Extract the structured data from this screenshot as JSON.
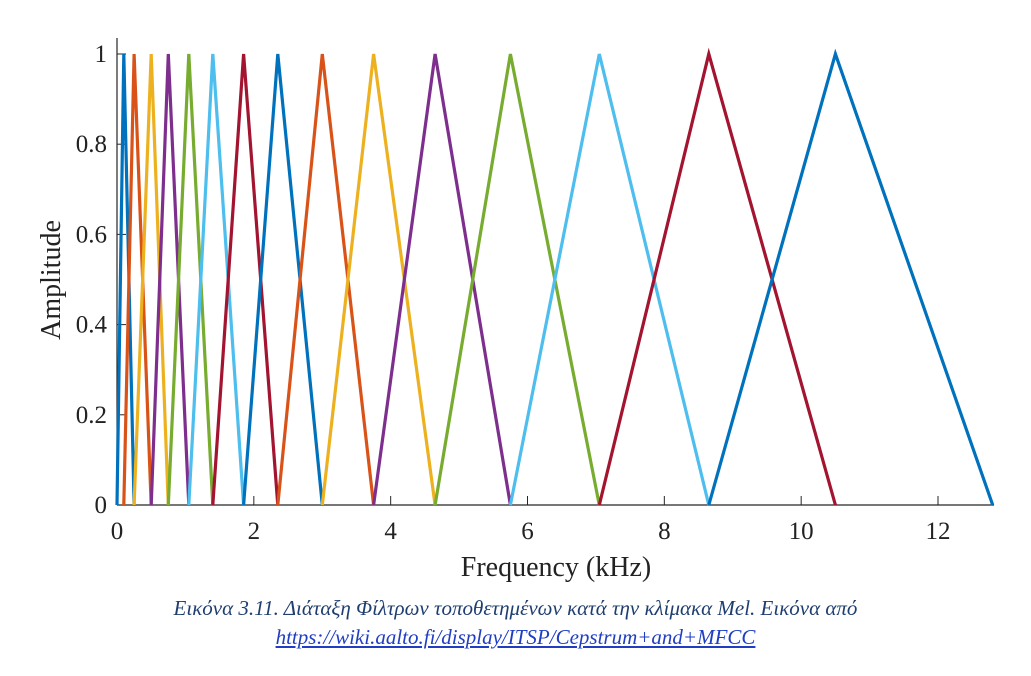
{
  "chart_data": {
    "type": "line",
    "xlabel": "Frequency (kHz)",
    "ylabel": "Amplitude",
    "xlim": [
      0,
      12.8
    ],
    "ylim": [
      0,
      1
    ],
    "xticks": [
      0,
      2,
      4,
      6,
      8,
      10,
      12
    ],
    "yticks": [
      0,
      0.2,
      0.4,
      0.6,
      0.8,
      1
    ],
    "grid": false,
    "legend": "none",
    "series": [
      {
        "color": "#0072BD",
        "x": [
          0,
          0.1,
          0.25
        ],
        "y": [
          0,
          1,
          0
        ]
      },
      {
        "color": "#D95319",
        "x": [
          0.1,
          0.25,
          0.5
        ],
        "y": [
          0,
          1,
          0
        ]
      },
      {
        "color": "#EDB120",
        "x": [
          0.25,
          0.5,
          0.75
        ],
        "y": [
          0,
          1,
          0
        ]
      },
      {
        "color": "#7E2F8E",
        "x": [
          0.5,
          0.75,
          1.05
        ],
        "y": [
          0,
          1,
          0
        ]
      },
      {
        "color": "#77AC30",
        "x": [
          0.75,
          1.05,
          1.4
        ],
        "y": [
          0,
          1,
          0
        ]
      },
      {
        "color": "#4DBEEE",
        "x": [
          1.05,
          1.4,
          1.85
        ],
        "y": [
          0,
          1,
          0
        ]
      },
      {
        "color": "#A2142F",
        "x": [
          1.4,
          1.85,
          2.35
        ],
        "y": [
          0,
          1,
          0
        ]
      },
      {
        "color": "#0072BD",
        "x": [
          1.85,
          2.35,
          3.0
        ],
        "y": [
          0,
          1,
          0
        ]
      },
      {
        "color": "#D95319",
        "x": [
          2.35,
          3.0,
          3.75
        ],
        "y": [
          0,
          1,
          0
        ]
      },
      {
        "color": "#EDB120",
        "x": [
          3.0,
          3.75,
          4.65
        ],
        "y": [
          0,
          1,
          0
        ]
      },
      {
        "color": "#7E2F8E",
        "x": [
          3.75,
          4.65,
          5.75
        ],
        "y": [
          0,
          1,
          0
        ]
      },
      {
        "color": "#77AC30",
        "x": [
          4.65,
          5.75,
          7.05
        ],
        "y": [
          0,
          1,
          0
        ]
      },
      {
        "color": "#4DBEEE",
        "x": [
          5.75,
          7.05,
          8.65
        ],
        "y": [
          0,
          1,
          0
        ]
      },
      {
        "color": "#A2142F",
        "x": [
          7.05,
          8.65,
          10.5
        ],
        "y": [
          0,
          1,
          0
        ]
      },
      {
        "color": "#0072BD",
        "x": [
          8.65,
          10.5,
          12.8
        ],
        "y": [
          0,
          1,
          0
        ]
      }
    ]
  },
  "caption": {
    "line1": "Εικόνα 3.11. Διάταξη Φίλτρων τοποθετημένων κατά την κλίμακα Mel. Εικόνα από",
    "link": "https://wiki.aalto.fi/display/ITSP/Cepstrum+and+MFCC"
  }
}
